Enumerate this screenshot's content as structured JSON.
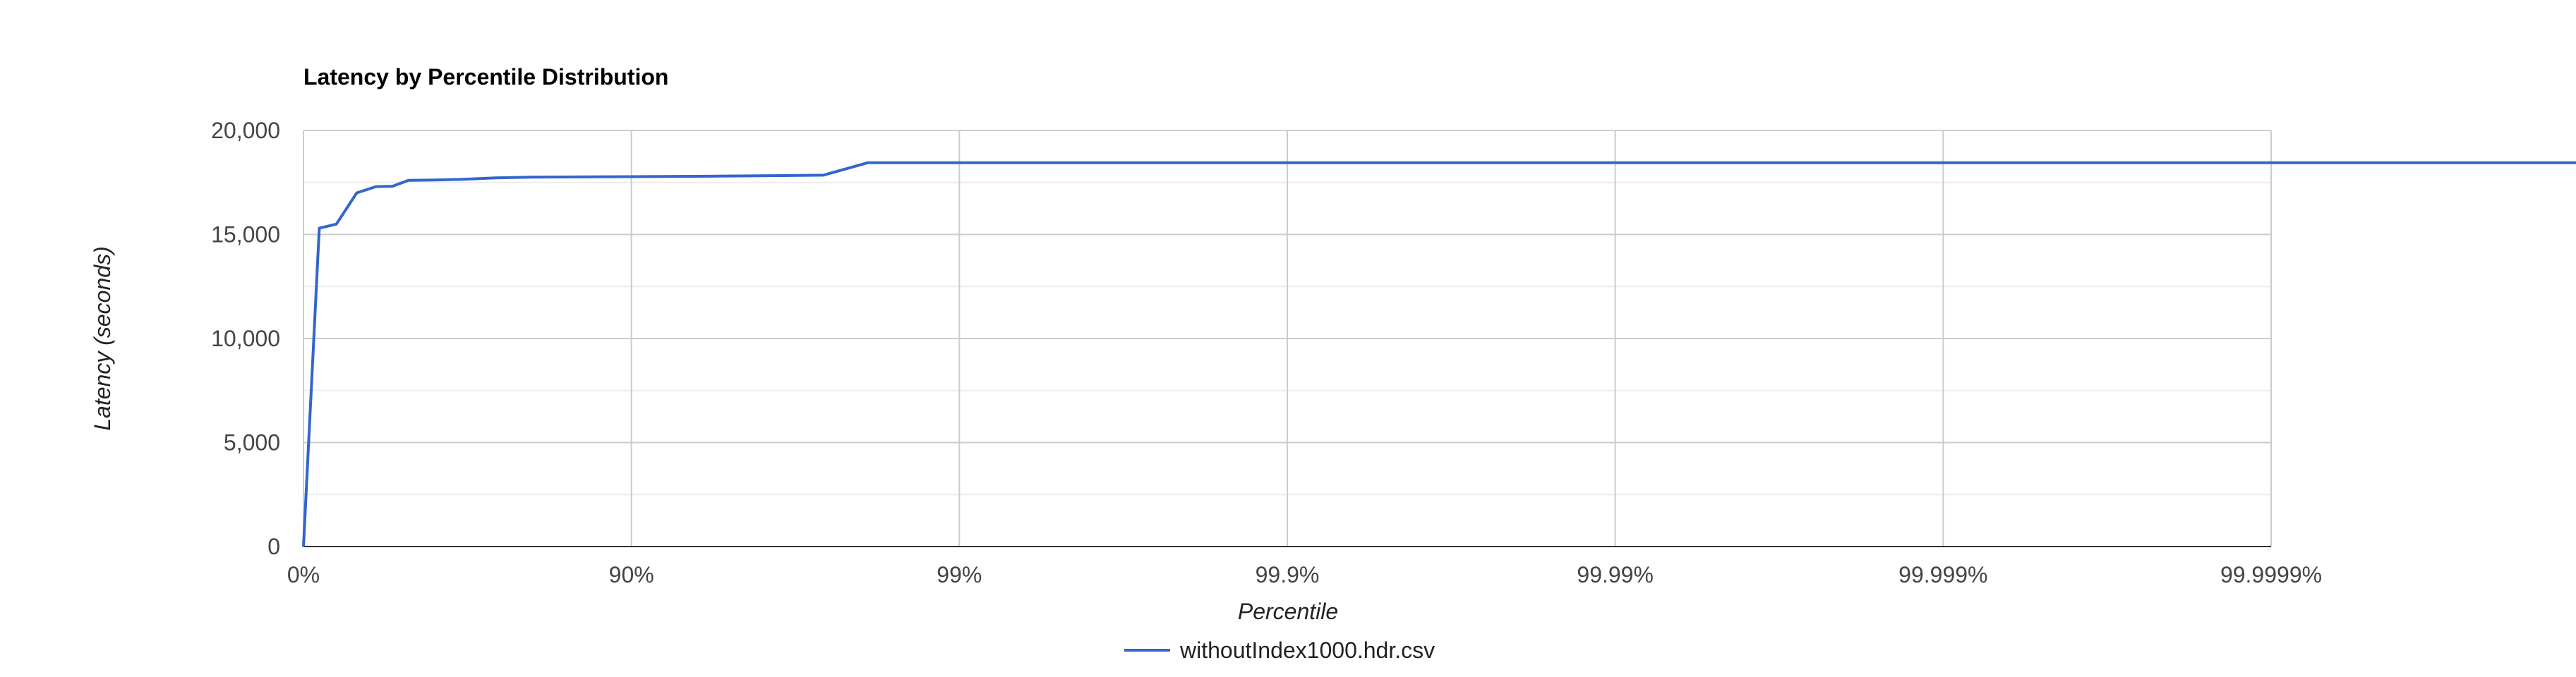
{
  "chart_data": {
    "type": "line",
    "title": "Latency by Percentile Distribution",
    "xlabel": "Percentile",
    "ylabel": "Latency (seconds)",
    "x_scale": "log(1/(1-p)) percentile",
    "x_ticks": [
      "0%",
      "90%",
      "99%",
      "99.9%",
      "99.99%",
      "99.999%",
      "99.9999%"
    ],
    "y_ticks": [
      "0",
      "5,000",
      "10,000",
      "15,000",
      "20,000"
    ],
    "ylim": [
      0,
      20000
    ],
    "grid": true,
    "legend": "bottom",
    "series": [
      {
        "name": "withoutIndex1000.hdr.csv",
        "color": "#3366cc",
        "points": [
          {
            "x": "0%",
            "y": 0
          },
          {
            "x": "10.5%",
            "y": 15300
          },
          {
            "x": "20.6%",
            "y": 15500
          },
          {
            "x": "31.2%",
            "y": 17000
          },
          {
            "x": "39.9%",
            "y": 17300
          },
          {
            "x": "46.5%",
            "y": 17320
          },
          {
            "x": "52.1%",
            "y": 17600
          },
          {
            "x": "60.0%",
            "y": 17620
          },
          {
            "x": "67.4%",
            "y": 17650
          },
          {
            "x": "74.0%",
            "y": 17720
          },
          {
            "x": "80.0%",
            "y": 17760
          },
          {
            "x": "90.0%",
            "y": 17780
          },
          {
            "x": "94.2%",
            "y": 17800
          },
          {
            "x": "96.5%",
            "y": 17830
          },
          {
            "x": "97.4%",
            "y": 17850
          },
          {
            "x": "98.1%",
            "y": 18450
          },
          {
            "x": "99.99999%",
            "y": 18450
          }
        ]
      }
    ]
  }
}
